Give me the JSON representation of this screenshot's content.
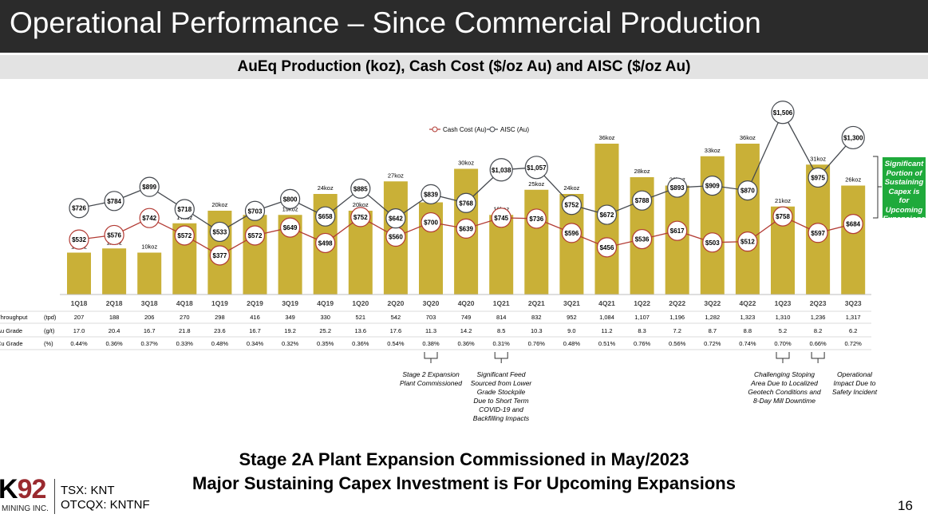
{
  "title": "Operational Performance – Since Commercial Production",
  "subtitle": "AuEq Production (koz), Cash Cost ($/oz Au) and AISC ($/oz Au)",
  "colors": {
    "bar": "#c9b037",
    "cash_cost": "#b23a33",
    "aisc": "#45494f",
    "callout": "#1faa3b",
    "title_bar": "#2b2b2b"
  },
  "chart_data": {
    "type": "bar",
    "categories": [
      "1Q18",
      "2Q18",
      "3Q18",
      "4Q18",
      "1Q19",
      "2Q19",
      "3Q19",
      "4Q19",
      "1Q20",
      "2Q20",
      "3Q20",
      "4Q20",
      "1Q21",
      "2Q21",
      "3Q21",
      "4Q21",
      "1Q22",
      "2Q22",
      "3Q22",
      "4Q22",
      "1Q23",
      "2Q23",
      "3Q23"
    ],
    "production_labels": [
      "10koz",
      "11koz",
      "10koz",
      "17koz",
      "20koz",
      "19koz",
      "19koz",
      "24koz",
      "20koz",
      "27koz",
      "22koz",
      "30koz",
      "19koz",
      "25koz",
      "24koz",
      "36koz",
      "28koz",
      "26koz",
      "33koz",
      "36koz",
      "21koz",
      "31koz",
      "26koz"
    ],
    "production_koz": [
      10,
      11,
      10,
      17,
      20,
      19,
      19,
      24,
      20,
      27,
      22,
      30,
      19,
      25,
      24,
      36,
      28,
      26,
      33,
      36,
      21,
      31,
      26
    ],
    "ylim": [
      0,
      40
    ],
    "legend_position": "top-center",
    "series": [
      {
        "name": "Cash Cost (Au)",
        "values": [
          532,
          576,
          742,
          572,
          377,
          572,
          649,
          498,
          752,
          560,
          700,
          639,
          745,
          736,
          596,
          456,
          536,
          617,
          503,
          512,
          758,
          597,
          684
        ],
        "labels": [
          "$532",
          "$576",
          "$742",
          "$572",
          "$377",
          "$572",
          "$649",
          "$498",
          "$752",
          "$560",
          "$700",
          "$639",
          "$745",
          "$736",
          "$596",
          "$456",
          "$536",
          "$617",
          "$503",
          "$512",
          "$758",
          "$597",
          "$684"
        ]
      },
      {
        "name": "AISC (Au)",
        "values": [
          726,
          784,
          899,
          718,
          533,
          703,
          800,
          658,
          885,
          642,
          839,
          768,
          1038,
          1057,
          752,
          672,
          788,
          893,
          909,
          870,
          1506,
          975,
          1300
        ],
        "labels": [
          "$726",
          "$784",
          "$899",
          "$718",
          "$533",
          "$703",
          "$800",
          "$658",
          "$885",
          "$642",
          "$839",
          "$768",
          "$1,038",
          "$1,057",
          "$752",
          "$672",
          "$788",
          "$893",
          "$909",
          "$870",
          "$1,506",
          "$975",
          "$1,300"
        ]
      }
    ]
  },
  "table": {
    "rows": [
      {
        "label": "Throughput",
        "unit": "(tpd)",
        "values": [
          "207",
          "188",
          "206",
          "270",
          "298",
          "416",
          "349",
          "330",
          "521",
          "542",
          "703",
          "749",
          "814",
          "832",
          "952",
          "1,084",
          "1,107",
          "1,196",
          "1,282",
          "1,323",
          "1,310",
          "1,236",
          "1,317"
        ]
      },
      {
        "label": "Au Grade",
        "unit": "(g/t)",
        "values": [
          "17.0",
          "20.4",
          "16.7",
          "21.8",
          "23.6",
          "16.7",
          "19.2",
          "25.2",
          "13.6",
          "17.6",
          "11.3",
          "14.2",
          "8.5",
          "10.3",
          "9.0",
          "11.2",
          "8.3",
          "7.2",
          "8.7",
          "8.8",
          "5.2",
          "8.2",
          "6.2"
        ]
      },
      {
        "label": "Cu Grade",
        "unit": "(%)",
        "values": [
          "0.44%",
          "0.36%",
          "0.37%",
          "0.33%",
          "0.48%",
          "0.34%",
          "0.32%",
          "0.35%",
          "0.36%",
          "0.54%",
          "0.38%",
          "0.36%",
          "0.31%",
          "0.76%",
          "0.48%",
          "0.51%",
          "0.76%",
          "0.56%",
          "0.72%",
          "0.74%",
          "0.70%",
          "0.66%",
          "0.72%"
        ]
      }
    ]
  },
  "annotations": [
    {
      "quarter": "3Q20",
      "lines": [
        "Stage 2 Expansion",
        "Plant Commissioned"
      ]
    },
    {
      "quarter": "1Q21",
      "lines": [
        "Significant Feed",
        "Sourced from Lower",
        "Grade Stockpile",
        "Due to Short Term",
        "COVID-19 and",
        "Backfilling Impacts"
      ]
    },
    {
      "quarter": "1Q23",
      "lines": [
        "Challenging Stoping",
        "Area Due to Localized",
        "Geotech Conditions and",
        "8-Day Mill Downtime"
      ]
    },
    {
      "quarter": "2Q23",
      "lines": [
        "Operational",
        "Impact Due to",
        "Safety Incident"
      ]
    }
  ],
  "callout": {
    "lines": [
      "Significant",
      "Portion of",
      "Sustaining",
      "Capex is for",
      "Upcoming",
      "Expansions"
    ]
  },
  "message_line1": "Stage 2A Plant Expansion Commissioned in May/2023",
  "message_line2": "Major Sustaining Capex Investment is For Upcoming Expansions",
  "logo": {
    "name_k": "K",
    "name_92": "92",
    "subtext": "MINING INC."
  },
  "ticker_tsx": "TSX: KNT",
  "ticker_otc": "OTCQX: KNTNF",
  "page_number": "16"
}
